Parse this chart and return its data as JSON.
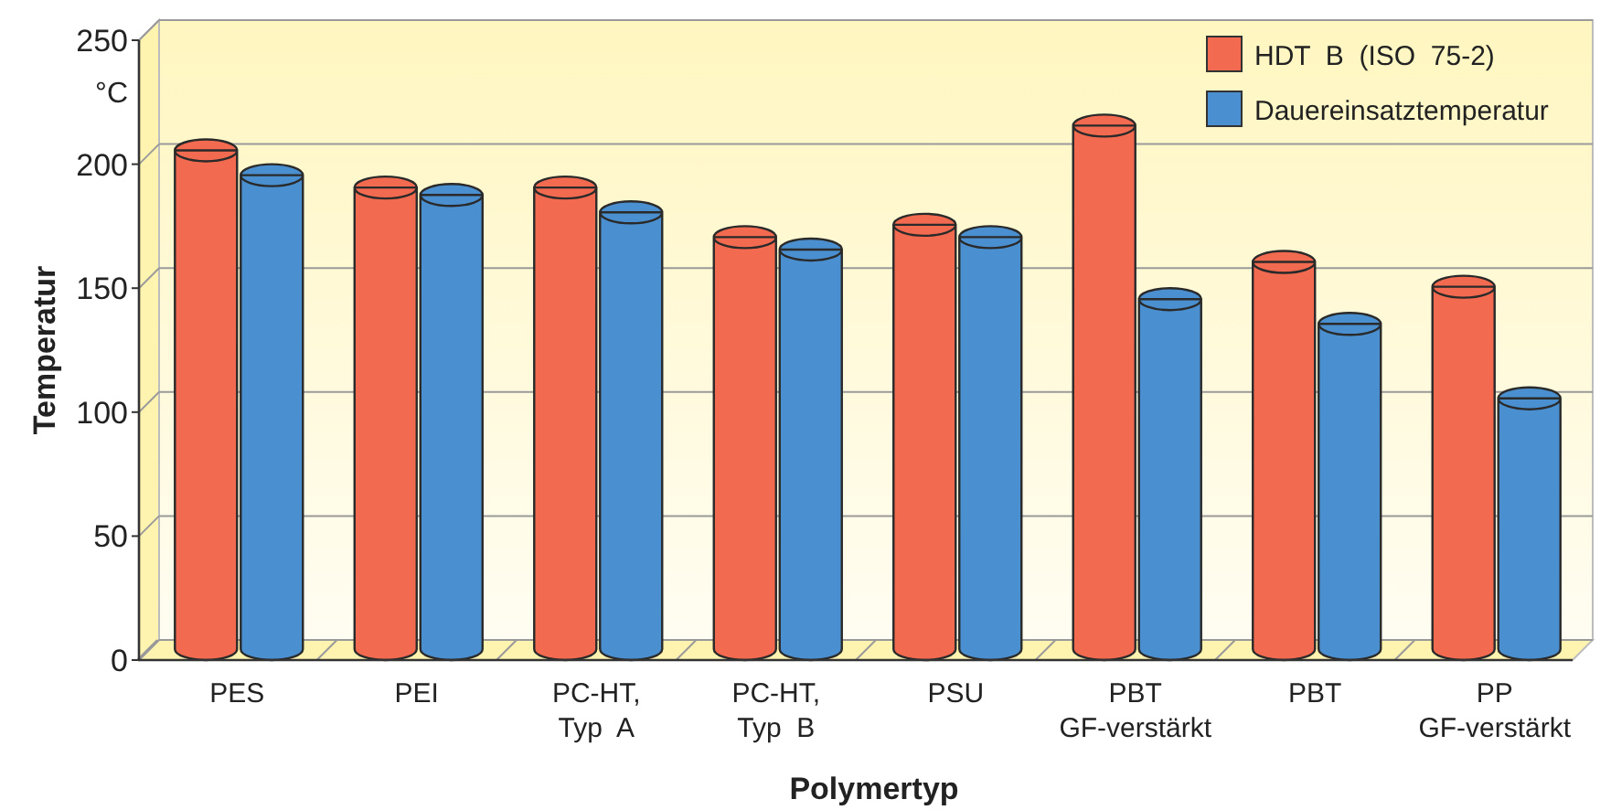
{
  "chart_data": {
    "type": "bar",
    "xlabel": "Polymertyp",
    "ylabel": "Temperatur",
    "annotations": [
      "°C"
    ],
    "categories": [
      "PES",
      "PEI",
      "PC-HT,\nTyp  A",
      "PC-HT,\nTyp  B",
      "PSU",
      "PBT\nGF-verstärkt",
      "PBT",
      "PP\nGF-verstärkt"
    ],
    "series": [
      {
        "name": "HDT  B  (ISO  75-2)",
        "color": "#f26a4f",
        "values": [
          210,
          195,
          195,
          175,
          180,
          220,
          165,
          155
        ]
      },
      {
        "name": "Dauereinsatztemperatur",
        "color": "#4a8fd0",
        "values": [
          200,
          192,
          185,
          170,
          175,
          150,
          140,
          110
        ]
      }
    ],
    "ylim": [
      0,
      250
    ],
    "yticks": [
      0,
      50,
      100,
      150,
      200,
      250
    ],
    "grid": "y",
    "legend": "top right"
  }
}
